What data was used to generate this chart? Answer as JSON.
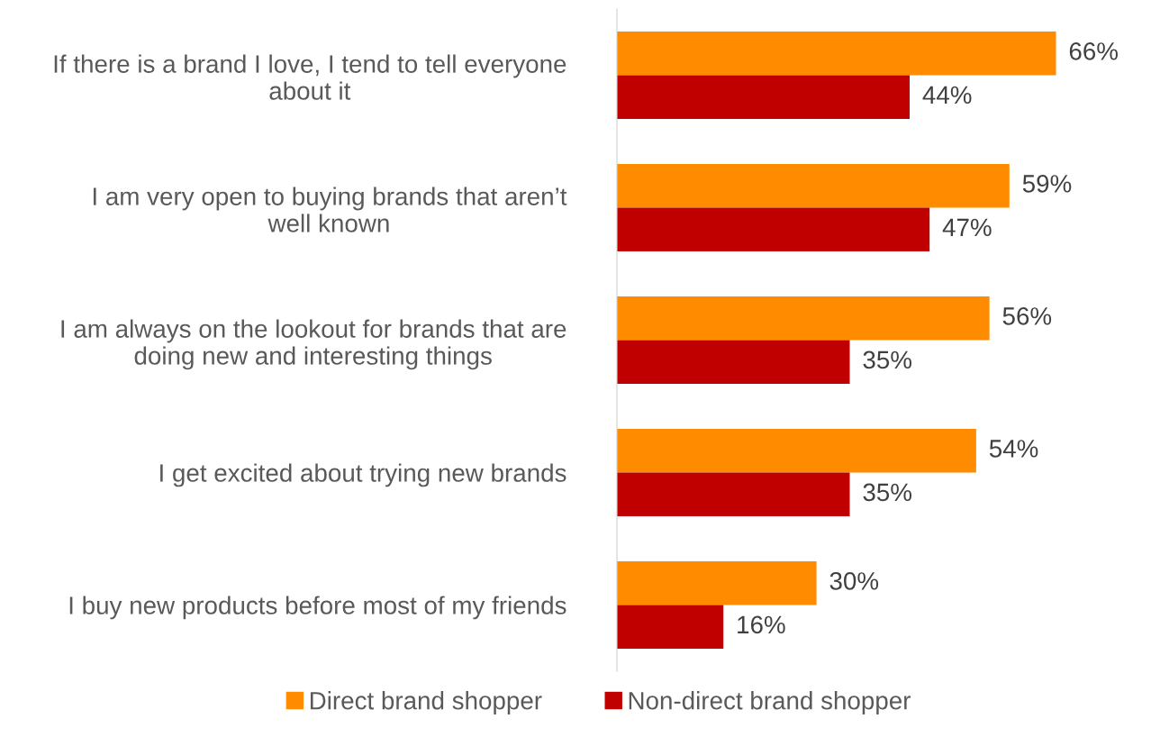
{
  "chart_data": {
    "type": "bar",
    "orientation": "horizontal",
    "relative": false,
    "categories": [
      "If there is a brand I love, I tend to tell everyone\nabout it",
      "I am very open to buying brands that aren’t\nwell known",
      "I am always on the lookout for brands that are\ndoing new and interesting things",
      "I get excited about trying new brands",
      "I buy new products before most of my friends"
    ],
    "series": [
      {
        "name": "Direct brand shopper",
        "color": "#ff8c00",
        "values": [
          66,
          59,
          56,
          54,
          30
        ],
        "value_labels": [
          "66%",
          "59%",
          "56%",
          "54%",
          "30%"
        ]
      },
      {
        "name": "Non-direct brand shopper",
        "color": "#c00000",
        "values": [
          44,
          47,
          35,
          35,
          16
        ],
        "value_labels": [
          "44%",
          "47%",
          "35%",
          "35%",
          "16%"
        ]
      }
    ],
    "legend": "bottom",
    "grid": false
  }
}
